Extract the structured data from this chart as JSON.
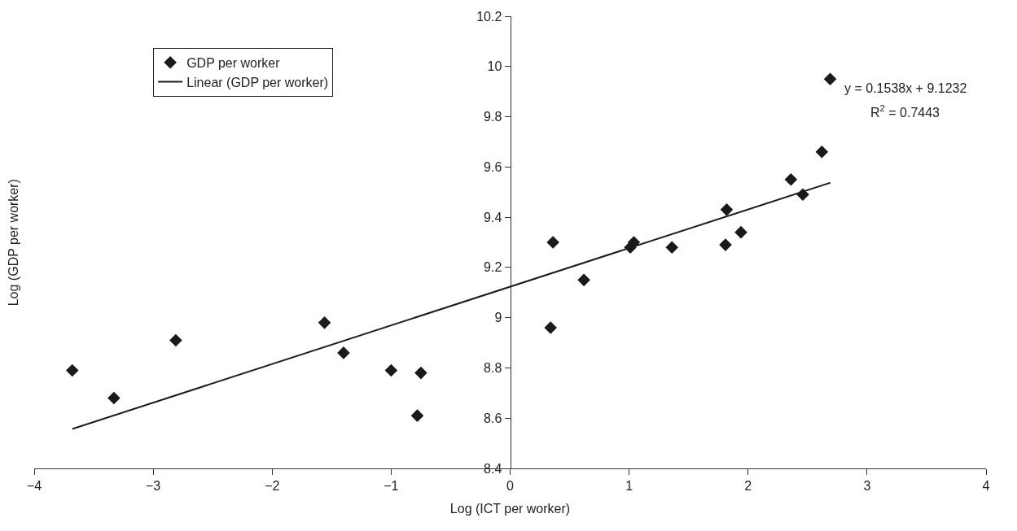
{
  "chart_data": {
    "type": "scatter",
    "xlabel": "Log (ICT per worker)",
    "ylabel": "Log (GDP per worker)",
    "series": [
      {
        "name": "GDP per worker",
        "color": "#1a1a1a",
        "marker": "diamond",
        "x": [
          -3.68,
          -3.33,
          -2.81,
          -1.56,
          -1.4,
          -1.0,
          -0.75,
          -0.78,
          0.36,
          0.34,
          0.62,
          1.04,
          1.01,
          1.36,
          1.82,
          1.81,
          1.94,
          2.36,
          2.46,
          2.62,
          2.69
        ],
        "values": [
          8.79,
          8.68,
          8.91,
          8.98,
          8.86,
          8.79,
          8.78,
          8.61,
          9.3,
          8.96,
          9.15,
          9.3,
          9.28,
          9.28,
          9.43,
          9.29,
          9.34,
          9.55,
          9.49,
          9.66,
          9.95
        ]
      },
      {
        "name": "Linear (GDP per worker)",
        "type": "line",
        "color": "#1a1a1a",
        "line_style": "solid",
        "x": [
          -3.68,
          2.69
        ],
        "values": [
          8.557,
          9.537
        ]
      }
    ],
    "xlim": [
      -4,
      4
    ],
    "xticks": [
      {
        "value": -4,
        "label": "−4"
      },
      {
        "value": -3,
        "label": "−3"
      },
      {
        "value": -2,
        "label": "−2"
      },
      {
        "value": -1,
        "label": "−1"
      },
      0,
      1,
      2,
      3,
      4
    ],
    "ylim": [
      8.4,
      10.2
    ],
    "yticks": [
      8.4,
      8.6,
      8.8,
      9,
      9.2,
      9.4,
      9.6,
      9.8,
      10,
      10.2
    ],
    "legend": "top left",
    "annotations": [
      "y = 0.1538x + 9.1232",
      "R$^{2}$ = 0.7443"
    ]
  }
}
